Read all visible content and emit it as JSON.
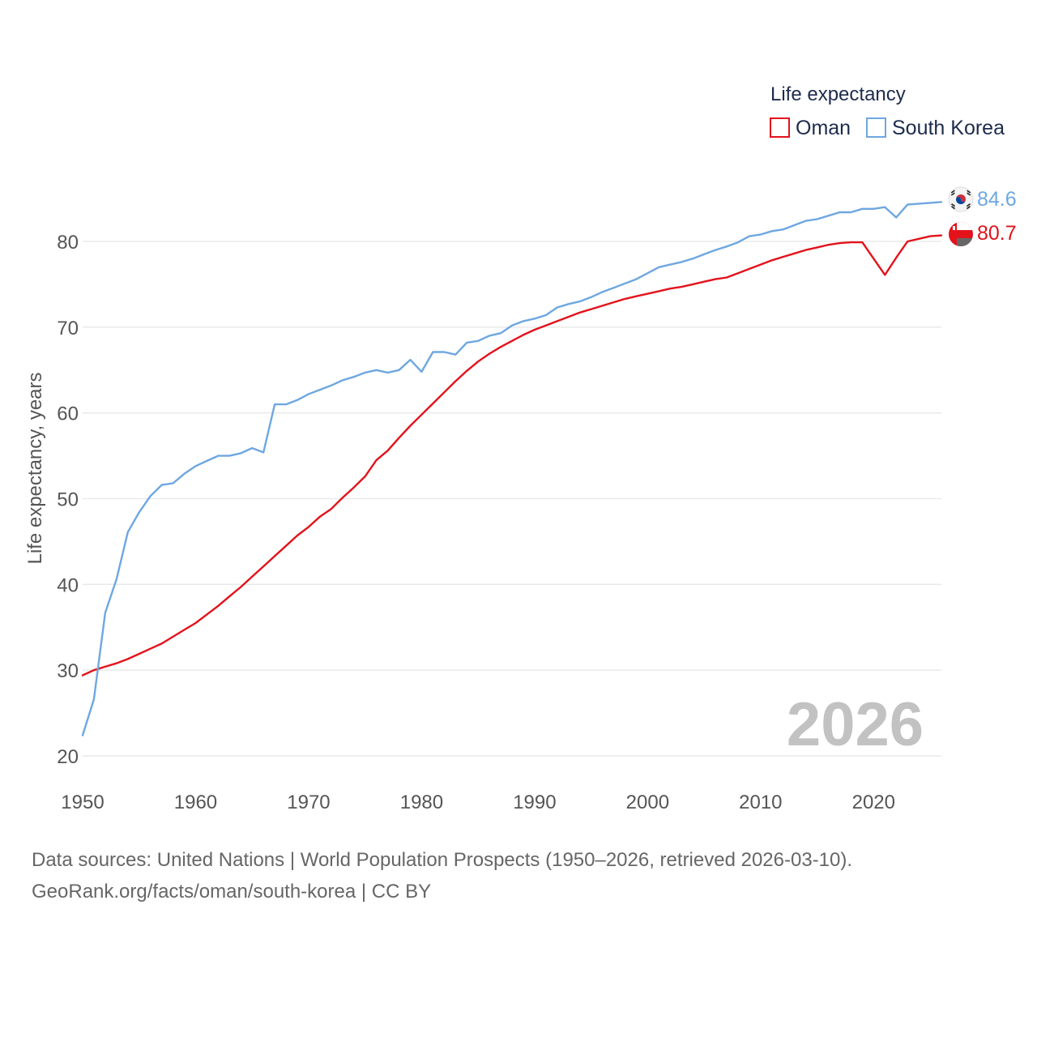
{
  "colors": {
    "oman": "#e3121b",
    "south_korea": "#6ea7e0",
    "grid": "#e8e8e8",
    "tick": "#555555",
    "legend_text": "#1d2b4c",
    "year_overlay": "#c2c2c2"
  },
  "legend": {
    "title": "Life expectancy",
    "items": [
      {
        "label": "Oman",
        "color": "#e3121b"
      },
      {
        "label": "South Korea",
        "color": "#6ea7e0"
      }
    ]
  },
  "year_overlay": "2026",
  "end_labels": {
    "south_korea": "84.6",
    "oman": "80.7",
    "south_korea_flag_icon": "south-korea-flag-icon",
    "oman_flag_icon": "oman-flag-icon"
  },
  "source": {
    "line1": "Data sources: United Nations | World Population Prospects (1950–2026, retrieved 2026-03-10).",
    "line2": "GeoRank.org/facts/oman/south-korea | CC BY"
  },
  "chart_data": {
    "type": "line",
    "title": "Life expectancy",
    "xlabel": "",
    "ylabel": "Life expectancy, years",
    "xlim": [
      1950,
      2026
    ],
    "ylim": [
      20,
      86
    ],
    "grid": true,
    "legend_position": "top-right",
    "x_ticks": [
      1950,
      1960,
      1970,
      1980,
      1990,
      2000,
      2010,
      2020
    ],
    "y_ticks": [
      20,
      30,
      40,
      50,
      60,
      70,
      80
    ],
    "x": [
      1950,
      1951,
      1952,
      1953,
      1954,
      1955,
      1956,
      1957,
      1958,
      1959,
      1960,
      1961,
      1962,
      1963,
      1964,
      1965,
      1966,
      1967,
      1968,
      1969,
      1970,
      1971,
      1972,
      1973,
      1974,
      1975,
      1976,
      1977,
      1978,
      1979,
      1980,
      1981,
      1982,
      1983,
      1984,
      1985,
      1986,
      1987,
      1988,
      1989,
      1990,
      1991,
      1992,
      1993,
      1994,
      1995,
      1996,
      1997,
      1998,
      1999,
      2000,
      2001,
      2002,
      2003,
      2004,
      2005,
      2006,
      2007,
      2008,
      2009,
      2010,
      2011,
      2012,
      2013,
      2014,
      2015,
      2016,
      2017,
      2018,
      2019,
      2020,
      2021,
      2022,
      2023,
      2024,
      2025,
      2026
    ],
    "series": [
      {
        "name": "Oman",
        "color": "#e3121b",
        "values": [
          29.4,
          30.0,
          30.4,
          30.8,
          31.3,
          31.9,
          32.5,
          33.1,
          33.9,
          34.7,
          35.5,
          36.5,
          37.5,
          38.6,
          39.7,
          40.9,
          42.1,
          43.3,
          44.5,
          45.7,
          46.7,
          47.9,
          48.8,
          50.1,
          51.3,
          52.6,
          54.5,
          55.6,
          57.1,
          58.5,
          59.8,
          61.1,
          62.4,
          63.7,
          64.9,
          66.0,
          66.9,
          67.7,
          68.4,
          69.1,
          69.7,
          70.2,
          70.7,
          71.2,
          71.7,
          72.1,
          72.5,
          72.9,
          73.3,
          73.6,
          73.9,
          74.2,
          74.5,
          74.7,
          75.0,
          75.3,
          75.6,
          75.8,
          76.3,
          76.8,
          77.3,
          77.8,
          78.2,
          78.6,
          79.0,
          79.3,
          79.6,
          79.8,
          79.9,
          79.9,
          78.0,
          76.1,
          78.1,
          80.0,
          80.3,
          80.6,
          80.7
        ]
      },
      {
        "name": "South Korea",
        "color": "#6ea7e0",
        "values": [
          22.4,
          26.6,
          36.7,
          40.6,
          46.1,
          48.4,
          50.3,
          51.6,
          51.8,
          52.9,
          53.8,
          54.4,
          55.0,
          55.0,
          55.3,
          55.9,
          55.4,
          61.0,
          61.0,
          61.5,
          62.2,
          62.7,
          63.2,
          63.8,
          64.2,
          64.7,
          65.0,
          64.7,
          65.0,
          66.2,
          64.8,
          67.1,
          67.1,
          66.8,
          68.2,
          68.4,
          69.0,
          69.3,
          70.2,
          70.7,
          71.0,
          71.4,
          72.3,
          72.7,
          73.0,
          73.5,
          74.1,
          74.6,
          75.1,
          75.6,
          76.3,
          77.0,
          77.3,
          77.6,
          78.0,
          78.5,
          79.0,
          79.4,
          79.9,
          80.6,
          80.8,
          81.2,
          81.4,
          81.9,
          82.4,
          82.6,
          83.0,
          83.4,
          83.4,
          83.8,
          83.8,
          84.0,
          82.8,
          84.3,
          84.4,
          84.5,
          84.6
        ]
      }
    ]
  }
}
